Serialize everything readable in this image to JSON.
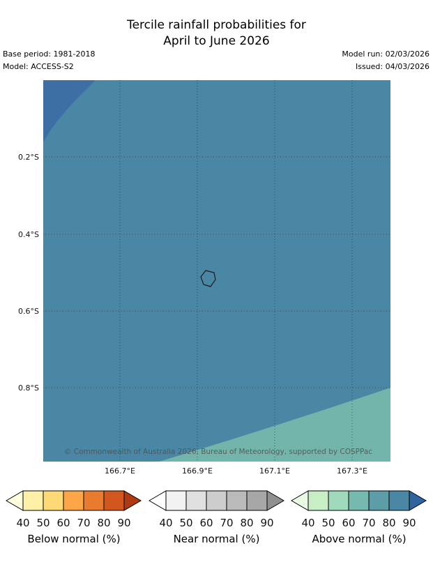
{
  "title": {
    "line1": "Tercile rainfall probabilities for",
    "line2": "April to June 2026"
  },
  "metadata": {
    "base_period": "Base period: 1981-2018",
    "model": "Model: ACCESS-S2",
    "model_run": "Model run: 02/03/2026",
    "issued": "Issued: 04/03/2026"
  },
  "map": {
    "lat_labels": [
      "0.2°S",
      "0.4°S",
      "0.6°S",
      "0.8°S"
    ],
    "lon_labels": [
      "166.7°E",
      "166.9°E",
      "167.1°E",
      "167.3°E"
    ],
    "copyright": "© Commonwealth of Australia 2026, Bureau of Meteorology, supported by COSPPac",
    "colors": {
      "main": "#4a87a4",
      "top_left": "#3d6fa4",
      "bottom_right": "#74b5ab",
      "island_outline": "#1a1a1a",
      "gridline": "#333333"
    }
  },
  "legends": [
    {
      "caption": "Below normal (%)",
      "ticks": [
        "40",
        "50",
        "60",
        "70",
        "80",
        "90"
      ],
      "arrow_left": "#ffffe0",
      "segments": [
        "#fff0a8",
        "#fed976",
        "#fca649",
        "#e87b2d",
        "#d2571e"
      ],
      "arrow_right": "#ad3a10"
    },
    {
      "caption": "Near normal (%)",
      "ticks": [
        "40",
        "50",
        "60",
        "70",
        "80",
        "90"
      ],
      "arrow_left": "#ffffff",
      "segments": [
        "#f2f2f2",
        "#e0e0e0",
        "#cdcdcd",
        "#bababa",
        "#a7a7a7"
      ],
      "arrow_right": "#909090"
    },
    {
      "caption": "Above normal (%)",
      "ticks": [
        "40",
        "50",
        "60",
        "70",
        "80",
        "90"
      ],
      "arrow_left": "#e8fae4",
      "segments": [
        "#c8eec6",
        "#9fdabd",
        "#76b9ae",
        "#5c9da8",
        "#4a87a4"
      ],
      "arrow_right": "#30649e"
    }
  ]
}
